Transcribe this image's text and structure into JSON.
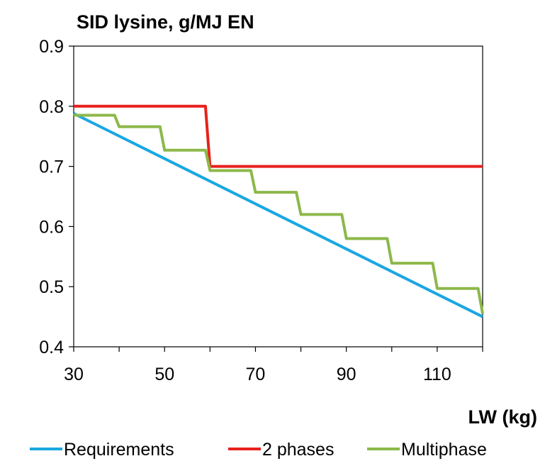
{
  "chart_data": {
    "type": "line",
    "title": "SID lysine, g/MJ EN",
    "xlabel": "LW (kg)",
    "ylabel": "",
    "xlim": [
      30,
      120
    ],
    "ylim": [
      0.4,
      0.9
    ],
    "x_ticks": [
      "30",
      "50",
      "70",
      "90",
      "110"
    ],
    "y_ticks": [
      "0.4",
      "0.5",
      "0.6",
      "0.7",
      "0.8",
      "0.9"
    ],
    "grid": false,
    "legend_position": "bottom",
    "series": [
      {
        "name": "Requirements",
        "color": "#1aa7e0",
        "x": [
          30,
          120
        ],
        "y": [
          0.788,
          0.45
        ]
      },
      {
        "name": "2 phases",
        "color": "#e8211c",
        "x": [
          30,
          59,
          60,
          120
        ],
        "y": [
          0.8,
          0.8,
          0.7,
          0.7
        ]
      },
      {
        "name": "Multiphase",
        "color": "#8db84a",
        "x": [
          30,
          39,
          40,
          49,
          50,
          59,
          60,
          69,
          70,
          79,
          80,
          89,
          90,
          99,
          100,
          109,
          110,
          119,
          120
        ],
        "y": [
          0.785,
          0.785,
          0.766,
          0.766,
          0.727,
          0.727,
          0.693,
          0.693,
          0.657,
          0.657,
          0.62,
          0.62,
          0.58,
          0.58,
          0.539,
          0.539,
          0.497,
          0.497,
          0.455
        ]
      }
    ]
  }
}
